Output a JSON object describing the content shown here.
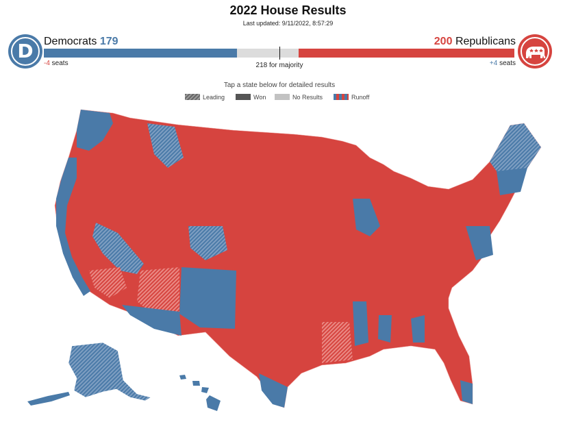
{
  "header": {
    "title": "2022 House Results",
    "updated": "Last updated: 9/11/2022, 8:57:29"
  },
  "democrats": {
    "name": "Democrats",
    "seats": "179",
    "change_value": "-4",
    "change_unit": " seats",
    "logo_letter": "D",
    "color": "#4a7aa8"
  },
  "republicans": {
    "name": "Republicans",
    "seats": "200",
    "change_value": "+4",
    "change_unit": " seats",
    "color": "#d6443f"
  },
  "majority_label": "218 for majority",
  "instruction": "Tap a state below for detailed results",
  "legend": {
    "leading": "Leading",
    "won": "Won",
    "no_results": "No Results",
    "runoff": "Runoff"
  },
  "colors": {
    "dem": "#4a7aa8",
    "rep": "#d6443f",
    "no_results": "#dcdcdc"
  }
}
